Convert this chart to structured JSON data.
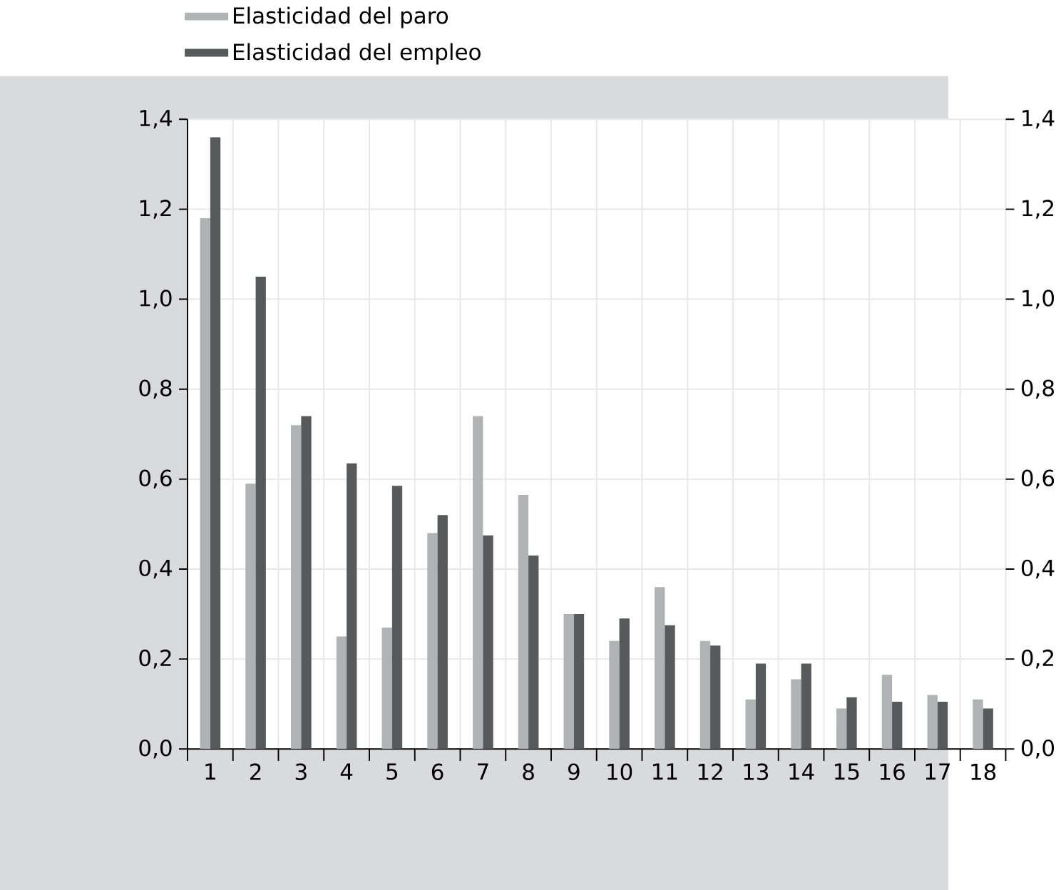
{
  "chart_data": {
    "type": "bar",
    "categories": [
      "1",
      "2",
      "3",
      "4",
      "5",
      "6",
      "7",
      "8",
      "9",
      "10",
      "11",
      "12",
      "13",
      "14",
      "15",
      "16",
      "17",
      "18"
    ],
    "series": [
      {
        "name": "Elasticidad del paro",
        "color": "#b1b2b3",
        "values": [
          1.18,
          0.59,
          0.72,
          0.25,
          0.27,
          0.48,
          0.74,
          0.565,
          0.3,
          0.24,
          0.36,
          0.24,
          0.11,
          0.155,
          0.09,
          0.165,
          0.12,
          0.11
        ]
      },
      {
        "name": "Elasticidad del empleo",
        "color": "#58595b",
        "values": [
          1.36,
          1.05,
          0.74,
          0.635,
          0.585,
          0.52,
          0.475,
          0.43,
          0.3,
          0.29,
          0.275,
          0.23,
          0.19,
          0.19,
          0.115,
          0.105,
          0.105,
          0.09
        ]
      }
    ],
    "ylim": [
      0,
      1.4
    ],
    "yticks": [
      {
        "value": 0,
        "label": "0,0"
      },
      {
        "value": 0.2,
        "label": "0,2"
      },
      {
        "value": 0.4,
        "label": "0,4"
      },
      {
        "value": 0.6,
        "label": "0,6"
      },
      {
        "value": 0.8,
        "label": "0,8"
      },
      {
        "value": 1.0,
        "label": "1,0"
      },
      {
        "value": 1.2,
        "label": "1,2"
      },
      {
        "value": 1.4,
        "label": "1,4"
      }
    ],
    "y2lim": [
      0,
      1.4
    ],
    "y2ticks": [
      {
        "value": 0,
        "label": "0,0"
      },
      {
        "value": 0.2,
        "label": "0,2"
      },
      {
        "value": 0.4,
        "label": "0,4"
      },
      {
        "value": 0.6,
        "label": "0,6"
      },
      {
        "value": 0.8,
        "label": "0,8"
      },
      {
        "value": 1.0,
        "label": "1,0"
      },
      {
        "value": 1.2,
        "label": "1,2"
      },
      {
        "value": 1.4,
        "label": "1,4"
      }
    ],
    "grid": true,
    "legend": "top left"
  }
}
